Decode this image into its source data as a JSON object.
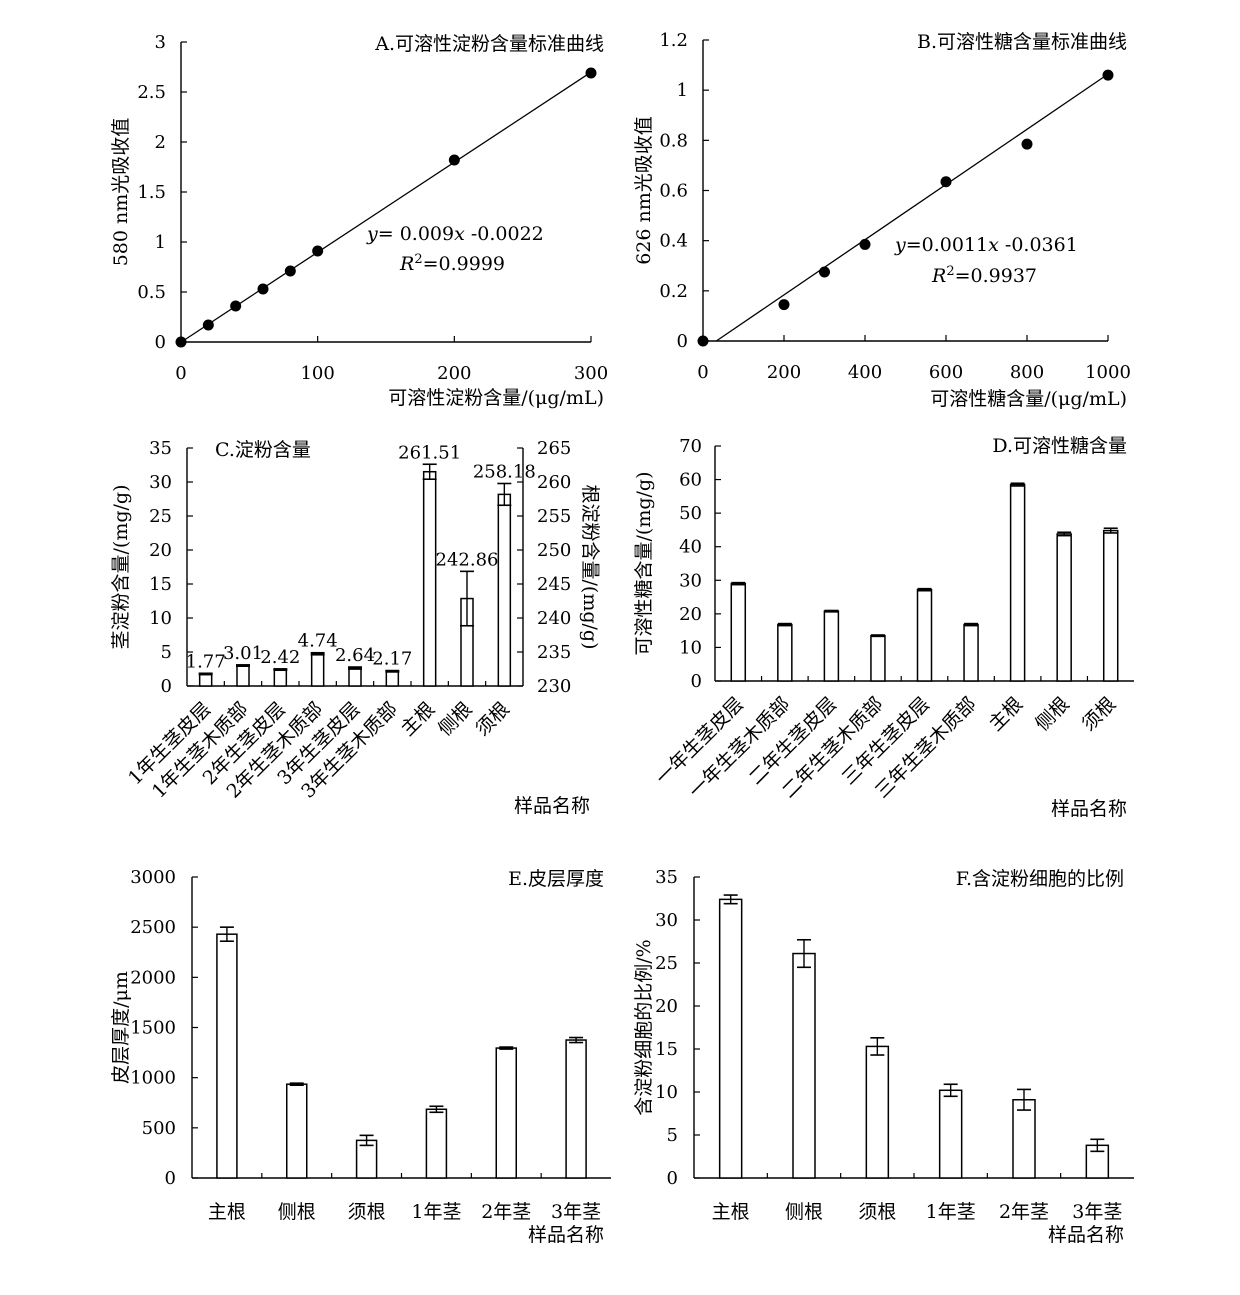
{
  "chart_data": [
    {
      "id": "A",
      "type": "scatter",
      "title": "A.可溶性淀粉含量标准曲线",
      "xlabel": "可溶性淀粉含量/(μg/mL)",
      "ylabel": "580 nm光吸收值",
      "xlim": [
        0,
        300
      ],
      "ylim": [
        0,
        3
      ],
      "xticks": [
        "0",
        "100",
        "200",
        "300"
      ],
      "yticks": [
        "0",
        "0.5",
        "1",
        "1.5",
        "2",
        "2.5",
        "3"
      ],
      "x": [
        0,
        20,
        40,
        60,
        80,
        100,
        200,
        300
      ],
      "y": [
        0,
        0.17,
        0.36,
        0.53,
        0.71,
        0.91,
        1.82,
        2.69
      ],
      "fit": {
        "slope": 0.009,
        "intercept": -0.0022
      },
      "equation": "y= 0.009x -0.0022",
      "r2": "R2=0.9999"
    },
    {
      "id": "B",
      "type": "scatter",
      "title": "B.可溶性糖含量标准曲线",
      "xlabel": "可溶性糖含量/(μg/mL)",
      "ylabel": "626 nm光吸收值",
      "xlim": [
        0,
        1000
      ],
      "ylim": [
        0,
        1.2
      ],
      "xticks": [
        "0",
        "200",
        "400",
        "600",
        "800",
        "1000"
      ],
      "yticks": [
        "0",
        "0.2",
        "0.4",
        "0.6",
        "0.8",
        "1",
        "1.2"
      ],
      "x": [
        0,
        200,
        300,
        400,
        600,
        800,
        1000
      ],
      "y": [
        0,
        0.145,
        0.275,
        0.385,
        0.635,
        0.785,
        1.06
      ],
      "fit": {
        "slope": 0.0011,
        "intercept": -0.0361
      },
      "equation": "y=0.0011x -0.0361",
      "r2": "R2=0.9937"
    },
    {
      "id": "C",
      "type": "bar",
      "title": "C.淀粉含量",
      "xlabel": "样品名称",
      "ylabel": "茎淀粉含量/(mg/g)",
      "y2label": "根淀粉含量/(mg/g)",
      "ylim": [
        0,
        35
      ],
      "y2lim": [
        230,
        265
      ],
      "yticks": [
        "0",
        "5",
        "10",
        "15",
        "20",
        "25",
        "30",
        "35"
      ],
      "y2ticks": [
        "230",
        "235",
        "240",
        "245",
        "250",
        "255",
        "260",
        "265"
      ],
      "categories": [
        "1年生茎皮层",
        "1年生茎木质部",
        "2年生茎皮层",
        "2年生茎木质部",
        "3年生茎皮层",
        "3年生茎木质部",
        "主根",
        "侧根",
        "须根"
      ],
      "values": [
        1.77,
        3.01,
        2.42,
        4.74,
        2.64,
        2.17,
        261.51,
        242.86,
        258.18
      ],
      "axis": [
        "left",
        "left",
        "left",
        "left",
        "left",
        "left",
        "right",
        "right",
        "right"
      ],
      "errors": [
        0.1,
        0.1,
        0.1,
        0.15,
        0.15,
        0.1,
        1.1,
        4.0,
        1.6
      ],
      "data_labels": [
        "1.77",
        "3.01",
        "2.42",
        "4.74",
        "2.64",
        "2.17",
        "261.51",
        "242.86",
        "258.18"
      ]
    },
    {
      "id": "D",
      "type": "bar",
      "title": "D.可溶性糖含量",
      "xlabel": "样品名称",
      "ylabel": "可溶性糖含量/(mg/g)",
      "ylim": [
        0,
        70
      ],
      "yticks": [
        "0",
        "10",
        "20",
        "30",
        "40",
        "50",
        "60",
        "70"
      ],
      "categories": [
        "一年生茎皮层",
        "一年生茎木质部",
        "二年生茎皮层",
        "二年生茎木质部",
        "三年生茎皮层",
        "三年生茎木质部",
        "主根",
        "侧根",
        "须根"
      ],
      "values": [
        29,
        16.8,
        20.8,
        13.5,
        27.2,
        16.8,
        58.5,
        43.8,
        44.8
      ],
      "errors": [
        0.3,
        0.3,
        0.2,
        0.2,
        0.3,
        0.3,
        0.4,
        0.5,
        0.7
      ]
    },
    {
      "id": "E",
      "type": "bar",
      "title": "E.皮层厚度",
      "xlabel": "样品名称",
      "ylabel": "皮层厚度/μm",
      "ylim": [
        0,
        3000
      ],
      "yticks": [
        "0",
        "500",
        "1000",
        "1500",
        "2000",
        "2500",
        "3000"
      ],
      "categories": [
        "主根",
        "侧根",
        "须根",
        "1年茎",
        "2年茎",
        "3年茎"
      ],
      "values": [
        2430,
        935,
        375,
        685,
        1295,
        1375
      ],
      "errors": [
        70,
        10,
        50,
        30,
        10,
        25
      ]
    },
    {
      "id": "F",
      "type": "bar",
      "title": "F.含淀粉细胞的比例",
      "xlabel": "样品名称",
      "ylabel": "含淀粉细胞的比例/%",
      "ylim": [
        0,
        35
      ],
      "yticks": [
        "0",
        "5",
        "10",
        "15",
        "20",
        "25",
        "30",
        "35"
      ],
      "categories": [
        "主根",
        "侧根",
        "须根",
        "1年茎",
        "2年茎",
        "3年茎"
      ],
      "values": [
        32.4,
        26.1,
        15.3,
        10.2,
        9.1,
        3.8
      ],
      "errors": [
        0.5,
        1.6,
        1.0,
        0.7,
        1.2,
        0.7
      ]
    }
  ]
}
